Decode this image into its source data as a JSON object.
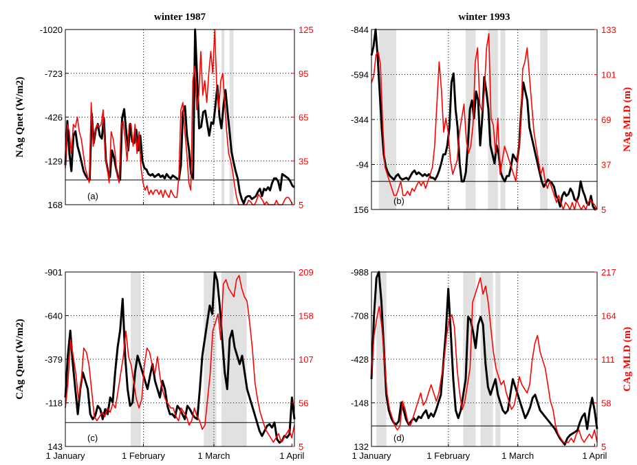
{
  "chart_data": [
    {
      "type": "line",
      "title": "winter 1987",
      "ylabel_left": "NAg Qnet (W/m2)",
      "ylabel_right": "",
      "panel_label": "(a)",
      "x_ticks": [
        "1 January",
        "1 February",
        "1 March",
        "1 April"
      ],
      "ylim_left": [
        168,
        -1020
      ],
      "yticks_left": [
        "-1020",
        "-723",
        "-426",
        "-129",
        "168"
      ],
      "ylim_right": [
        5,
        125
      ],
      "yticks_right": [
        "125",
        "95",
        "65",
        "35",
        "5"
      ],
      "zero_ref_left": 0,
      "shaded_periods": [
        [
          62,
          63.2
        ],
        [
          65.2,
          66.8
        ]
      ],
      "series": [
        {
          "axis": "left",
          "color": "#000000",
          "values": [
            -100,
            -400,
            -180,
            -60,
            -300,
            -330,
            -230,
            -180,
            -120,
            -60,
            -30,
            -10,
            0,
            -450,
            -250,
            -340,
            -380,
            -300,
            -280,
            -420,
            -140,
            -60,
            -20,
            -200,
            -150,
            -80,
            -20,
            0,
            -420,
            -480,
            -330,
            -200,
            -380,
            -260,
            -250,
            -340,
            -200,
            -300,
            -130,
            -80,
            -70,
            -40,
            -30,
            -40,
            -20,
            -30,
            -40,
            -20,
            -30,
            -10,
            -40,
            -20,
            -10,
            -30,
            -20,
            -10,
            0,
            -100,
            -460,
            -500,
            -300,
            -200,
            -40,
            -10,
            -1020,
            -700,
            -350,
            -360,
            -460,
            -470,
            -380,
            -300,
            -390,
            -380,
            -500,
            -640,
            -430,
            -350,
            -500,
            -610,
            -460,
            -330,
            -190,
            -120,
            -60,
            -10,
            80,
            130,
            160,
            120,
            110,
            110,
            130,
            120,
            110,
            80,
            60,
            110,
            60,
            70,
            50,
            70,
            20,
            -10,
            -10,
            10,
            70,
            -40,
            -30,
            -20,
            -10,
            10,
            40,
            50
          ]
        },
        {
          "axis": "right",
          "color": "#ff0000",
          "values": [
            30,
            60,
            55,
            40,
            60,
            58,
            65,
            55,
            50,
            40,
            30,
            25,
            20,
            75,
            45,
            55,
            60,
            58,
            60,
            70,
            40,
            30,
            20,
            55,
            50,
            40,
            25,
            20,
            60,
            62,
            50,
            35,
            60,
            60,
            45,
            60,
            40,
            55,
            30,
            20,
            15,
            18,
            12,
            15,
            12,
            15,
            15,
            12,
            15,
            10,
            15,
            12,
            10,
            15,
            12,
            10,
            10,
            25,
            70,
            75,
            55,
            40,
            20,
            15,
            90,
            100,
            70,
            80,
            110,
            80,
            90,
            75,
            95,
            110,
            95,
            125,
            85,
            70,
            90,
            95,
            75,
            55,
            40,
            35,
            28,
            18,
            10,
            5,
            5,
            5,
            5,
            5,
            8,
            7,
            5,
            5,
            8,
            12,
            10,
            8,
            5,
            7,
            5,
            5,
            5,
            5,
            8,
            5,
            5,
            5,
            8,
            10,
            10,
            8,
            5,
            5
          ]
        }
      ]
    },
    {
      "type": "line",
      "title": "winter 1993",
      "ylabel_left": "",
      "ylabel_right": "NAg MLD (m)",
      "panel_label": "(b)",
      "x_ticks": [
        "1 January",
        "1 February",
        "1 March",
        "1 April"
      ],
      "ylim_left": [
        156,
        -844
      ],
      "yticks_left": [
        "-844",
        "-594",
        "-344",
        "-94",
        "156"
      ],
      "ylim_right": [
        5,
        133
      ],
      "yticks_right": [
        "133",
        "101",
        "69",
        "37",
        "5"
      ],
      "zero_ref_left": 0,
      "shaded_periods": [
        [
          3,
          10
        ],
        [
          38,
          42
        ],
        [
          47,
          51
        ],
        [
          52,
          54
        ],
        [
          68,
          71
        ]
      ],
      "series": [
        {
          "axis": "left",
          "color": "#000000",
          "values": [
            -700,
            -750,
            -844,
            -700,
            -500,
            -300,
            -150,
            -80,
            -50,
            -30,
            -20,
            -10,
            -30,
            -40,
            -20,
            -10,
            -15,
            -20,
            -10,
            -30,
            -50,
            -60,
            -40,
            -50,
            -40,
            -30,
            -40,
            -30,
            -40,
            -20,
            -20,
            -10,
            -30,
            -60,
            -100,
            -150,
            -150,
            -200,
            -300,
            -550,
            -600,
            -400,
            -300,
            -100,
            0,
            0,
            -50,
            -200,
            -400,
            -450,
            -350,
            -500,
            -450,
            -200,
            -350,
            -580,
            -500,
            -400,
            -200,
            -150,
            -100,
            -200,
            -150,
            -50,
            -20,
            0,
            -30,
            -30,
            -80,
            -150,
            -130,
            -110,
            -200,
            -400,
            -550,
            -500,
            -450,
            -300,
            -250,
            -200,
            -150,
            -100,
            -50,
            0,
            30,
            10,
            -10,
            0,
            10,
            30,
            80,
            100,
            140,
            80,
            60,
            80,
            70,
            40,
            60,
            100,
            110,
            80,
            0,
            50,
            80,
            120,
            130,
            80,
            140,
            160,
            150
          ]
        },
        {
          "axis": "right",
          "color": "#ff0000",
          "values": [
            95,
            100,
            115,
            117,
            108,
            65,
            35,
            30,
            25,
            20,
            15,
            15,
            20,
            25,
            15,
            15,
            18,
            15,
            20,
            18,
            22,
            25,
            22,
            25,
            20,
            25,
            30,
            35,
            50,
            80,
            110,
            90,
            60,
            70,
            60,
            40,
            30,
            35,
            40,
            60,
            70,
            80,
            55,
            45,
            50,
            65,
            110,
            120,
            80,
            75,
            88,
            120,
            130,
            70,
            65,
            45,
            70,
            30,
            40,
            50,
            45,
            40,
            35,
            30,
            25,
            45,
            60,
            105,
            110,
            120,
            100,
            80,
            60,
            50,
            40,
            30,
            35,
            25,
            20,
            25,
            20,
            15,
            10,
            15,
            10,
            5,
            10,
            8,
            5,
            10,
            5,
            12,
            8,
            5,
            8,
            5,
            10,
            12,
            10,
            8,
            5
          ]
        }
      ]
    },
    {
      "type": "line",
      "title": "",
      "ylabel_left": "CAg Qnet (W/m2)",
      "ylabel_right": "",
      "panel_label": "(c)",
      "x_ticks": [
        "1 January",
        "1 February",
        "1 March",
        "1 April"
      ],
      "ylim_left": [
        143,
        -901
      ],
      "yticks_left": [
        "-901",
        "-640",
        "-379",
        "-118",
        "143"
      ],
      "ylim_right": [
        5,
        209
      ],
      "yticks_right": [
        "209",
        "158",
        "107",
        "56",
        "5"
      ],
      "zero_ref_left": 0,
      "shaded_periods": [
        [
          26,
          30
        ],
        [
          55,
          60
        ],
        [
          62,
          72
        ]
      ],
      "series": [
        {
          "axis": "left",
          "color": "#000000",
          "values": [
            -150,
            -400,
            -550,
            -350,
            -200,
            -50,
            -200,
            -300,
            -250,
            -200,
            -50,
            -20,
            -40,
            -100,
            -80,
            -20,
            -80,
            -50,
            -150,
            -120,
            -300,
            -450,
            -550,
            -740,
            -400,
            -200,
            -100,
            -120,
            -300,
            -400,
            -350,
            -300,
            -250,
            -200,
            -280,
            -350,
            -250,
            -200,
            -150,
            -250,
            -200,
            -100,
            -50,
            -50,
            -30,
            -100,
            -80,
            -50,
            -20,
            -100,
            -80,
            -50,
            -30,
            -20,
            -200,
            -400,
            -500,
            -600,
            -700,
            -650,
            -900,
            -850,
            -700,
            -500,
            -300,
            -200,
            -500,
            -550,
            -450,
            -400,
            -350,
            -400,
            -300,
            -200,
            -150,
            -100,
            -50,
            0,
            50,
            80,
            50,
            20,
            10,
            30,
            0,
            100,
            120,
            110,
            80,
            90,
            70,
            -150,
            -20
          ]
        },
        {
          "axis": "right",
          "color": "#ff0000",
          "values": [
            50,
            80,
            130,
            110,
            90,
            60,
            80,
            120,
            115,
            100,
            70,
            40,
            35,
            40,
            45,
            40,
            50,
            45,
            55,
            50,
            70,
            90,
            110,
            140,
            110,
            100,
            80,
            60,
            50,
            60,
            100,
            120,
            115,
            100,
            90,
            110,
            85,
            70,
            60,
            55,
            50,
            50,
            40,
            35,
            50,
            45,
            40,
            30,
            35,
            50,
            40,
            35,
            25,
            30,
            60,
            90,
            140,
            150,
            160,
            130,
            195,
            200,
            190,
            185,
            180,
            200,
            205,
            190,
            180,
            175,
            150,
            120,
            80,
            60,
            45,
            35,
            25,
            20,
            15,
            10,
            15,
            20,
            10,
            15,
            20,
            25,
            15,
            30
          ]
        }
      ]
    },
    {
      "type": "line",
      "title": "",
      "ylabel_left": "",
      "ylabel_right": "CAg MLD (m)",
      "panel_label": "(d)",
      "x_ticks": [
        "1 January",
        "1 February",
        "1 March",
        "1 April"
      ],
      "ylim_left": [
        132,
        -988
      ],
      "yticks_left": [
        "-988",
        "-708",
        "-428",
        "-148",
        "132"
      ],
      "ylim_right": [
        5,
        217
      ],
      "yticks_right": [
        "217",
        "164",
        "111",
        "58",
        "5"
      ],
      "zero_ref_left": 0,
      "shaded_periods": [
        [
          2,
          6
        ],
        [
          37,
          42
        ],
        [
          44,
          49
        ],
        [
          50,
          52
        ]
      ],
      "series": [
        {
          "axis": "left",
          "color": "#000000",
          "values": [
            -300,
            -700,
            -950,
            -988,
            -800,
            -500,
            -200,
            -100,
            -50,
            -20,
            -10,
            -30,
            -150,
            -100,
            -40,
            -10,
            -30,
            -50,
            -30,
            -60,
            -50,
            -80,
            -100,
            -50,
            -80,
            -60,
            -100,
            -150,
            -200,
            -400,
            -600,
            -880,
            -600,
            -300,
            -100,
            -50,
            -100,
            -200,
            -300,
            -700,
            -680,
            -600,
            -500,
            -650,
            -700,
            -650,
            -400,
            -250,
            -200,
            -250,
            -300,
            -200,
            -150,
            -100,
            -80,
            -100,
            -200,
            -300,
            -250,
            -200,
            -150,
            -100,
            -50,
            -80,
            -120,
            -180,
            -200,
            -150,
            -100,
            -80,
            -60,
            -40,
            -20,
            0,
            20,
            50,
            80,
            100,
            120,
            80,
            60,
            50,
            40,
            30,
            -20,
            -60,
            -80,
            20,
            -100,
            -180,
            -100,
            20
          ]
        },
        {
          "axis": "right",
          "color": "#ff0000",
          "values": [
            90,
            140,
            160,
            175,
            150,
            110,
            70,
            50,
            40,
            30,
            25,
            30,
            60,
            50,
            35,
            30,
            40,
            50,
            60,
            70,
            55,
            60,
            70,
            80,
            70,
            60,
            70,
            90,
            110,
            140,
            160,
            165,
            150,
            100,
            70,
            50,
            60,
            80,
            100,
            180,
            190,
            200,
            210,
            190,
            200,
            180,
            150,
            120,
            100,
            90,
            80,
            85,
            70,
            60,
            50,
            55,
            70,
            90,
            80,
            75,
            70,
            80,
            110,
            130,
            140,
            120,
            110,
            100,
            80,
            60,
            50,
            30,
            20,
            15,
            10,
            10,
            10,
            15,
            10,
            20,
            25,
            15,
            10,
            15,
            20,
            15,
            25,
            10
          ]
        }
      ]
    }
  ]
}
